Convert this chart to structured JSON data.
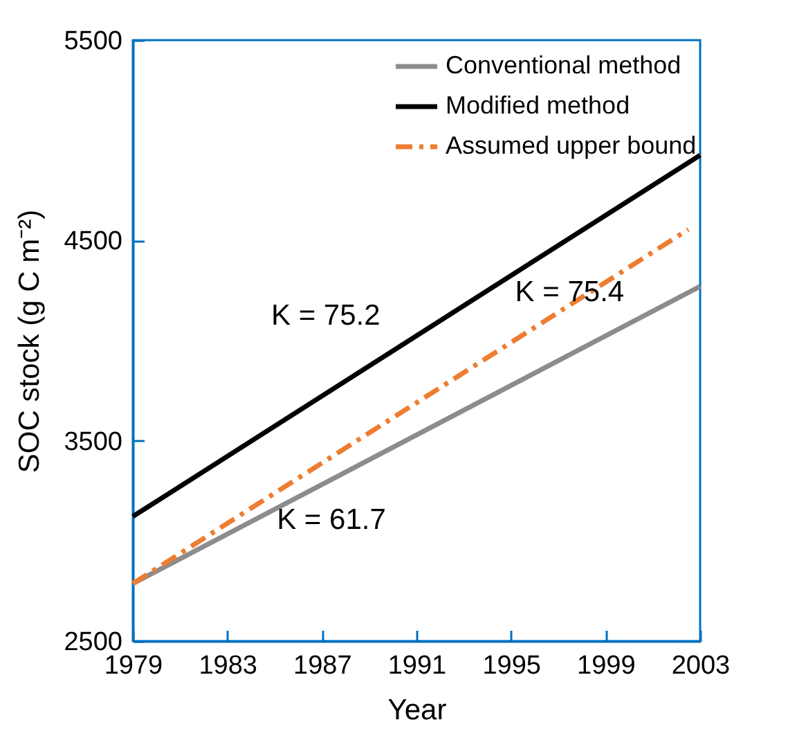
{
  "chart_data": {
    "type": "line",
    "xlabel": "Year",
    "ylabel": "SOC stock (g C m⁻²)",
    "xlim": [
      1979,
      2003
    ],
    "xticks": [
      1979,
      1983,
      1987,
      1991,
      1995,
      1999,
      2003
    ],
    "ylim": [
      2500,
      5500
    ],
    "yticks": [
      2500,
      3500,
      4500,
      5500
    ],
    "grid": false,
    "legend": "top right",
    "marker": "none",
    "series": [
      {
        "name": "Conventional method",
        "color": "#8c8c8c",
        "x": [
          1979,
          2003
        ],
        "values": [
          2787,
          4271
        ]
      },
      {
        "name": "Modified method",
        "color": "#000000",
        "x": [
          1979,
          2003
        ],
        "values": [
          3122,
          4926
        ]
      },
      {
        "name": "Assumed upper bound",
        "color": "#ed7d31",
        "line_style": "dashed",
        "x": [
          1979,
          2002.5
        ],
        "values": [
          2787,
          4555
        ]
      }
    ],
    "annotations": [
      "K = 75.2",
      "K = 75.4",
      "K = 61.7"
    ]
  }
}
